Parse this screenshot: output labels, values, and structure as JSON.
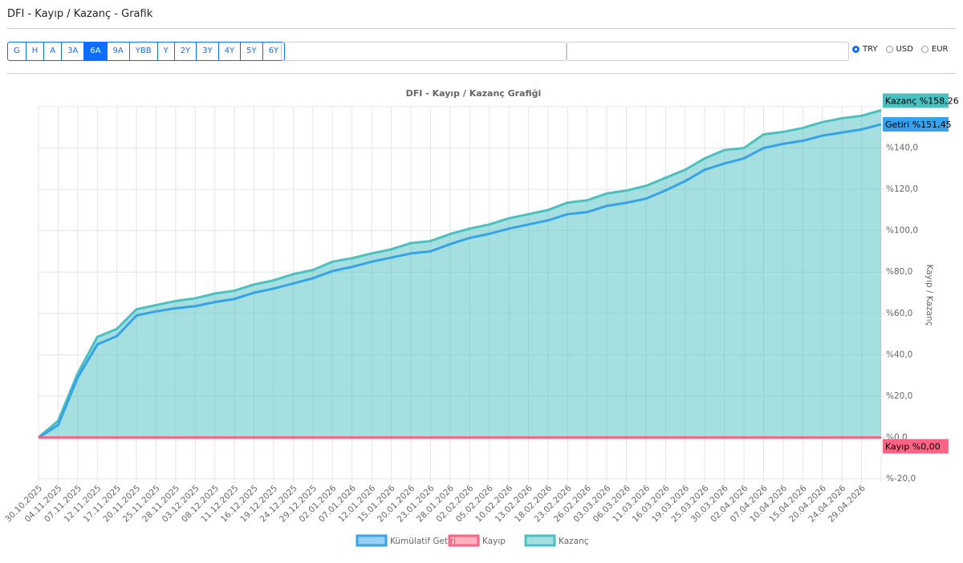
{
  "header": {
    "title": "DFI - Kayıp / Kazanç - Grafik"
  },
  "periods": {
    "options": [
      "G",
      "H",
      "A",
      "3A",
      "6A",
      "9A",
      "YBB",
      "Y",
      "2Y",
      "3Y",
      "4Y",
      "5Y",
      "6Y"
    ],
    "active": 4
  },
  "currencies": {
    "options": [
      "TRY",
      "USD",
      "EUR"
    ],
    "selected": 0
  },
  "chart_data": {
    "type": "line",
    "title": "DFI - Kayıp / Kazanç Grafiği",
    "y_label": "Kayıp / Kazanç",
    "categories": [
      "30.10.2025",
      "04.11.2025",
      "07.11.2025",
      "12.11.2025",
      "17.11.2025",
      "20.11.2025",
      "25.11.2025",
      "28.11.2025",
      "03.12.2025",
      "08.12.2025",
      "11.12.2025",
      "16.12.2025",
      "19.12.2025",
      "24.12.2025",
      "29.12.2025",
      "02.01.2026",
      "07.01.2026",
      "12.01.2026",
      "15.01.2026",
      "20.01.2026",
      "23.01.2026",
      "28.01.2026",
      "02.02.2026",
      "05.02.2026",
      "10.02.2026",
      "13.02.2026",
      "18.02.2026",
      "23.02.2026",
      "26.02.2026",
      "03.03.2026",
      "06.03.2026",
      "11.03.2026",
      "16.03.2026",
      "19.03.2026",
      "25.03.2026",
      "30.03.2026",
      "02.04.2026",
      "07.04.2026",
      "10.04.2026",
      "15.04.2026",
      "20.04.2026",
      "24.04.2026",
      "29.04.2026",
      null
    ],
    "series": [
      {
        "name": "Kümülatif Getiri",
        "color": "#36a2eb",
        "fill": false,
        "end_label": "Getiri %151,45",
        "values": [
          0,
          6,
          29,
          45,
          49,
          59,
          61,
          62.5,
          63.5,
          65.5,
          67,
          70,
          72,
          74.5,
          77,
          80.5,
          82.5,
          85,
          87,
          89,
          90,
          93.5,
          96.5,
          98.5,
          101,
          103,
          105,
          108,
          109,
          112,
          113.5,
          115.5,
          119.5,
          124,
          129.5,
          132.5,
          135,
          140,
          142,
          143.5,
          146,
          147.5,
          149,
          151.45
        ]
      },
      {
        "name": "Kayıp",
        "color": "#ff6384",
        "fill": false,
        "end_label": "Kayıp %0,00",
        "values": [
          0,
          0,
          0,
          0,
          0,
          0,
          0,
          0,
          0,
          0,
          0,
          0,
          0,
          0,
          0,
          0,
          0,
          0,
          0,
          0,
          0,
          0,
          0,
          0,
          0,
          0,
          0,
          0,
          0,
          0,
          0,
          0,
          0,
          0,
          0,
          0,
          0,
          0,
          0,
          0,
          0,
          0,
          0,
          0
        ]
      },
      {
        "name": "Kazanç",
        "color": "#4bc0c0",
        "fill": true,
        "end_label": "Kazanç %158,26",
        "values": [
          0,
          8,
          31,
          48.6,
          52.5,
          62,
          64,
          66,
          67.3,
          69.6,
          71,
          74,
          76,
          79,
          81,
          85,
          86.7,
          89,
          91,
          94,
          95,
          98.4,
          101,
          103,
          106,
          108,
          110,
          113.6,
          114.7,
          118,
          119.4,
          121.7,
          125.6,
          129.5,
          135,
          139,
          140,
          146.6,
          147.8,
          149.7,
          152.5,
          154.4,
          155.6,
          158.26
        ]
      }
    ],
    "ylim": [
      -20,
      160
    ],
    "yticks": [
      {
        "value": -20,
        "label": "%-20,0"
      },
      {
        "value": 0,
        "label": "%0,0"
      },
      {
        "value": 20,
        "label": "%20,0"
      },
      {
        "value": 40,
        "label": "%40,0"
      },
      {
        "value": 60,
        "label": "%60,0"
      },
      {
        "value": 80,
        "label": "%80,0"
      },
      {
        "value": 100,
        "label": "%100,0"
      },
      {
        "value": 120,
        "label": "%120,0"
      },
      {
        "value": 140,
        "label": "%140,0"
      }
    ],
    "grid": true
  }
}
